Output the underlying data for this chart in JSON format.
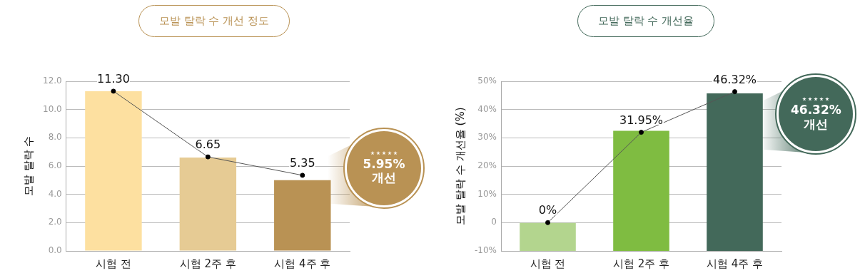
{
  "chart_data": [
    {
      "type": "bar",
      "title": "모발 탈락 수 개선 정도",
      "ylabel": "모발 탈락 수",
      "categories": [
        "시험 전",
        "시험 2주 후",
        "시험 4주 후"
      ],
      "series": [
        {
          "colors": [
            "#fde0a0",
            "#e6cb94",
            "#b99254"
          ],
          "values": [
            11.3,
            6.6,
            5.0
          ]
        },
        {
          "type": "line",
          "color": "#555555",
          "marker": "circle",
          "values": [
            11.3,
            6.65,
            5.35
          ],
          "value_labels": [
            "11.30",
            "6.65",
            "5.35"
          ]
        }
      ],
      "ylim": [
        0,
        12
      ],
      "yticks": [
        {
          "value": 0,
          "label": "0.0"
        },
        {
          "value": 2,
          "label": "2.0"
        },
        {
          "value": 4,
          "label": "4.0"
        },
        {
          "value": 6,
          "label": "6.0"
        },
        {
          "value": 8,
          "label": "8.0"
        },
        {
          "value": 10,
          "label": "10.0"
        },
        {
          "value": 12,
          "label": "12.0"
        }
      ],
      "grid": "y",
      "legend": false,
      "annotations": [
        "5.95% 개선"
      ]
    },
    {
      "type": "bar",
      "title": "모발 탈락 수 개선율",
      "ylabel": "모발 탈락 수 개선율 (%)",
      "categories": [
        "시험 전",
        "시험 2주 후",
        "시험 4주 후"
      ],
      "series": [
        {
          "colors": [
            "#b3d58e",
            "#7fbc41",
            "#43695a"
          ],
          "base": [
            -10,
            -10,
            -10
          ],
          "values": [
            10,
            42.5,
            55.7
          ]
        },
        {
          "type": "line",
          "color": "#555555",
          "marker": "circle",
          "values": [
            0,
            31.95,
            46.32
          ],
          "value_labels": [
            "0%",
            "31.95%",
            "46.32%"
          ]
        }
      ],
      "ylim": [
        -10,
        50
      ],
      "yticks": [
        {
          "value": -10,
          "label": "-10%"
        },
        0,
        {
          "value": 10,
          "label": "10%"
        },
        {
          "value": 20,
          "label": "20%"
        },
        {
          "value": 30,
          "label": "30%"
        },
        {
          "value": 40,
          "label": "40%"
        },
        {
          "value": 50,
          "label": "50%"
        }
      ],
      "grid": "y",
      "legend": false,
      "annotations": [
        "46.32% 개선"
      ]
    }
  ]
}
